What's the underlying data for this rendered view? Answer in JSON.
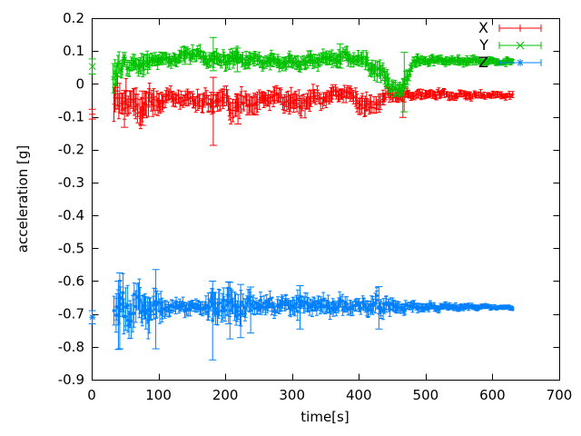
{
  "chart_data": {
    "type": "scatter",
    "style": "errorbars",
    "xlabel": "time[s]",
    "ylabel": "acceleration [g]",
    "xlim": [
      0,
      700
    ],
    "ylim": [
      -0.9,
      0.2
    ],
    "xticks": [
      0,
      100,
      200,
      300,
      400,
      500,
      600,
      700
    ],
    "yticks": [
      0.2,
      0.1,
      0,
      -0.1,
      -0.2,
      -0.3,
      -0.4,
      -0.5,
      -0.6,
      -0.7,
      -0.8,
      -0.9
    ],
    "grid": false,
    "legend_position": "top-right",
    "background_color": "#ffffff",
    "axis_color": "#000000",
    "noise_seed": 1337,
    "sample_step_s": 1.6,
    "series": [
      {
        "name": "X",
        "color": "#ff0000",
        "marker": "plus",
        "t_start": 33,
        "t_end": 631,
        "first_point": [
          1,
          -0.092,
          0.015
        ],
        "envelope": [
          [
            33,
            -0.05,
            0.068
          ],
          [
            42,
            -0.044,
            0.062
          ],
          [
            50,
            -0.04,
            0.058
          ],
          [
            58,
            -0.06,
            0.052
          ],
          [
            68,
            -0.07,
            0.05
          ],
          [
            78,
            -0.064,
            0.05
          ],
          [
            90,
            -0.055,
            0.048
          ],
          [
            100,
            -0.05,
            0.034
          ],
          [
            115,
            -0.044,
            0.028
          ],
          [
            130,
            -0.047,
            0.028
          ],
          [
            146,
            -0.044,
            0.028
          ],
          [
            160,
            -0.05,
            0.034
          ],
          [
            172,
            -0.055,
            0.036
          ],
          [
            183,
            -0.05,
            0.04
          ],
          [
            196,
            -0.046,
            0.035
          ],
          [
            210,
            -0.064,
            0.044
          ],
          [
            222,
            -0.07,
            0.044
          ],
          [
            235,
            -0.056,
            0.04
          ],
          [
            248,
            -0.06,
            0.038
          ],
          [
            262,
            -0.04,
            0.03
          ],
          [
            278,
            -0.034,
            0.028
          ],
          [
            295,
            -0.054,
            0.038
          ],
          [
            310,
            -0.064,
            0.04
          ],
          [
            322,
            -0.05,
            0.034
          ],
          [
            336,
            -0.044,
            0.03
          ],
          [
            352,
            -0.04,
            0.029
          ],
          [
            366,
            -0.034,
            0.027
          ],
          [
            380,
            -0.027,
            0.024
          ],
          [
            395,
            -0.044,
            0.034
          ],
          [
            410,
            -0.066,
            0.037
          ],
          [
            422,
            -0.058,
            0.034
          ],
          [
            436,
            -0.04,
            0.029
          ],
          [
            450,
            -0.035,
            0.024
          ],
          [
            465,
            -0.034,
            0.02
          ],
          [
            480,
            -0.033,
            0.016
          ],
          [
            520,
            -0.032,
            0.015
          ],
          [
            560,
            -0.033,
            0.014
          ],
          [
            600,
            -0.034,
            0.013
          ],
          [
            631,
            -0.034,
            0.012
          ]
        ],
        "spikes": [
          [
            49,
            -0.132,
            -0.02
          ],
          [
            76,
            -0.126,
            -0.022
          ],
          [
            182,
            -0.187,
            0.02
          ],
          [
            219,
            -0.122,
            -0.03
          ],
          [
            466,
            -0.102,
            -0.002
          ]
        ]
      },
      {
        "name": "Y",
        "color": "#00c000",
        "marker": "cross",
        "t_start": 33,
        "t_end": 631,
        "first_point": [
          1,
          0.053,
          0.023
        ],
        "envelope": [
          [
            33,
            0.045,
            0.06
          ],
          [
            40,
            0.052,
            0.05
          ],
          [
            48,
            0.066,
            0.032
          ],
          [
            56,
            0.052,
            0.042
          ],
          [
            64,
            0.068,
            0.028
          ],
          [
            74,
            0.06,
            0.038
          ],
          [
            82,
            0.056,
            0.04
          ],
          [
            90,
            0.072,
            0.026
          ],
          [
            105,
            0.075,
            0.022
          ],
          [
            125,
            0.078,
            0.024
          ],
          [
            140,
            0.086,
            0.027
          ],
          [
            152,
            0.088,
            0.026
          ],
          [
            165,
            0.08,
            0.026
          ],
          [
            182,
            0.075,
            0.028
          ],
          [
            200,
            0.072,
            0.03
          ],
          [
            215,
            0.08,
            0.028
          ],
          [
            232,
            0.075,
            0.026
          ],
          [
            260,
            0.072,
            0.025
          ],
          [
            285,
            0.068,
            0.026
          ],
          [
            300,
            0.063,
            0.026
          ],
          [
            320,
            0.07,
            0.025
          ],
          [
            342,
            0.073,
            0.025
          ],
          [
            360,
            0.078,
            0.026
          ],
          [
            372,
            0.082,
            0.027
          ],
          [
            386,
            0.079,
            0.025
          ],
          [
            400,
            0.074,
            0.025
          ],
          [
            415,
            0.058,
            0.03
          ],
          [
            428,
            0.038,
            0.034
          ],
          [
            440,
            0.014,
            0.032
          ],
          [
            452,
            -0.008,
            0.027
          ],
          [
            463,
            -0.018,
            0.024
          ],
          [
            470,
            0.005,
            0.038
          ],
          [
            477,
            0.062,
            0.022
          ],
          [
            490,
            0.07,
            0.018
          ],
          [
            520,
            0.072,
            0.016
          ],
          [
            560,
            0.07,
            0.014
          ],
          [
            600,
            0.069,
            0.013
          ],
          [
            631,
            0.068,
            0.012
          ]
        ],
        "spikes": [
          [
            140,
            0.06,
            0.112
          ],
          [
            182,
            0.04,
            0.141
          ],
          [
            218,
            0.037,
            0.109
          ],
          [
            372,
            0.048,
            0.122
          ],
          [
            468,
            -0.085,
            0.096
          ]
        ]
      },
      {
        "name": "Z",
        "color": "#0080ff",
        "marker": "star",
        "t_start": 34,
        "t_end": 631,
        "first_point": [
          1,
          -0.71,
          0.02
        ],
        "envelope": [
          [
            34,
            -0.685,
            0.068
          ],
          [
            45,
            -0.685,
            0.072
          ],
          [
            60,
            -0.682,
            0.075
          ],
          [
            75,
            -0.68,
            0.072
          ],
          [
            90,
            -0.684,
            0.065
          ],
          [
            100,
            -0.68,
            0.05
          ],
          [
            112,
            -0.678,
            0.028
          ],
          [
            130,
            -0.677,
            0.024
          ],
          [
            150,
            -0.676,
            0.025
          ],
          [
            168,
            -0.68,
            0.032
          ],
          [
            178,
            -0.684,
            0.062
          ],
          [
            192,
            -0.681,
            0.055
          ],
          [
            205,
            -0.675,
            0.055
          ],
          [
            220,
            -0.679,
            0.05
          ],
          [
            235,
            -0.677,
            0.042
          ],
          [
            250,
            -0.675,
            0.035
          ],
          [
            268,
            -0.676,
            0.033
          ],
          [
            284,
            -0.675,
            0.031
          ],
          [
            298,
            -0.676,
            0.03
          ],
          [
            312,
            -0.669,
            0.04
          ],
          [
            326,
            -0.675,
            0.03
          ],
          [
            342,
            -0.676,
            0.028
          ],
          [
            356,
            -0.677,
            0.03
          ],
          [
            372,
            -0.675,
            0.028
          ],
          [
            386,
            -0.674,
            0.028
          ],
          [
            400,
            -0.675,
            0.026
          ],
          [
            414,
            -0.672,
            0.03
          ],
          [
            428,
            -0.667,
            0.042
          ],
          [
            442,
            -0.674,
            0.028
          ],
          [
            456,
            -0.677,
            0.023
          ],
          [
            470,
            -0.678,
            0.019
          ],
          [
            490,
            -0.678,
            0.016
          ],
          [
            520,
            -0.678,
            0.013
          ],
          [
            560,
            -0.678,
            0.011
          ],
          [
            600,
            -0.679,
            0.009
          ],
          [
            631,
            -0.679,
            0.008
          ]
        ],
        "spikes": [
          [
            40,
            -0.808,
            -0.6
          ],
          [
            42,
            -0.806,
            -0.575
          ],
          [
            96,
            -0.806,
            -0.565
          ],
          [
            181,
            -0.84,
            -0.6
          ],
          [
            205,
            -0.73,
            -0.602
          ],
          [
            207,
            -0.776,
            -0.604
          ],
          [
            223,
            -0.772,
            -0.61
          ],
          [
            238,
            -0.758,
            -0.618
          ],
          [
            312,
            -0.746,
            -0.614
          ],
          [
            430,
            -0.746,
            -0.617
          ]
        ]
      }
    ]
  }
}
